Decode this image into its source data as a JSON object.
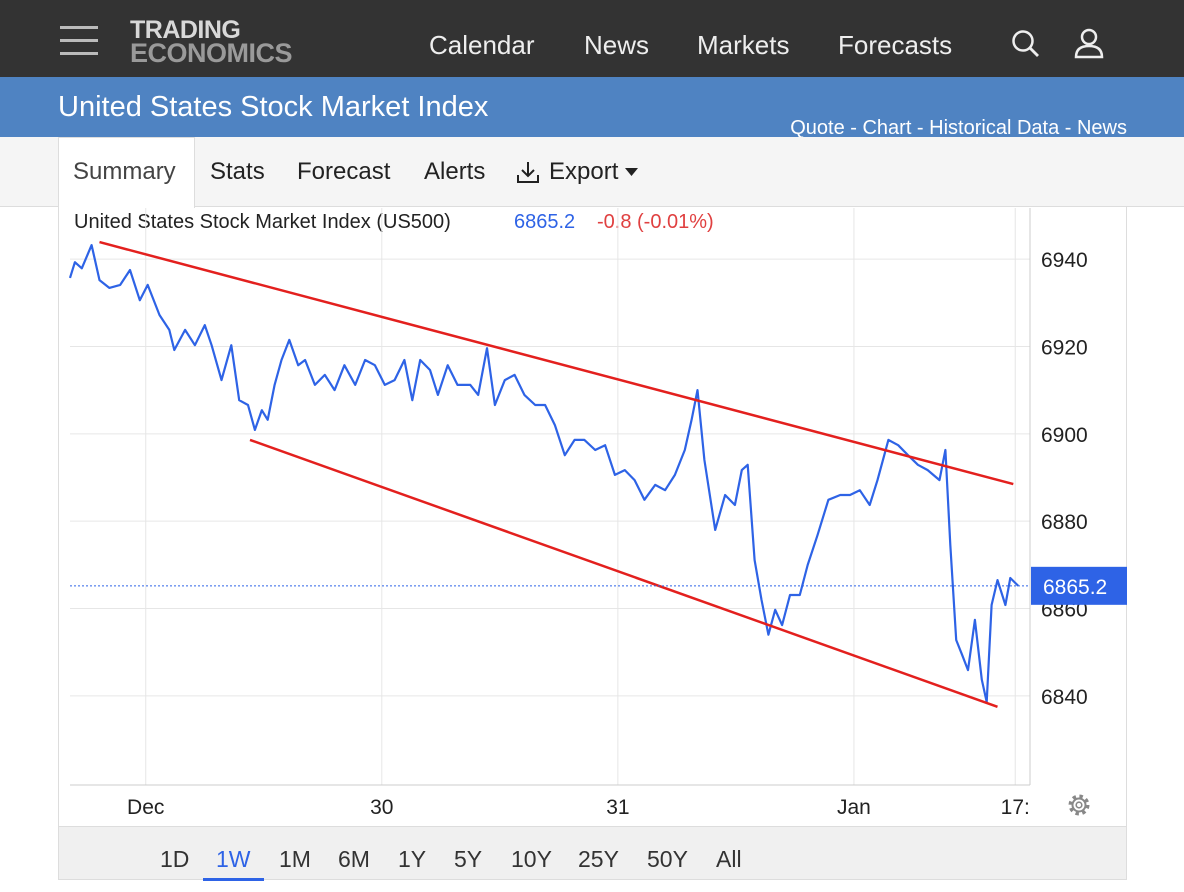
{
  "logo": [
    "TRADING",
    "ECONOMICS"
  ],
  "nav": [
    "Calendar",
    "News",
    "Markets",
    "Forecasts"
  ],
  "page_title": "United States Stock Market Index",
  "quick_links": [
    "Quote",
    "Chart",
    "Historical Data",
    "News"
  ],
  "link_separator": " - ",
  "tabs": [
    "Summary",
    "Stats",
    "Forecast",
    "Alerts",
    "Export"
  ],
  "ranges": [
    "1D",
    "1W",
    "1M",
    "6M",
    "1Y",
    "5Y",
    "10Y",
    "25Y",
    "50Y",
    "All"
  ],
  "active_range": 1,
  "chart_data": {
    "type": "line",
    "last_value": 6865.2,
    "change": "-0.8 (-0.01%)",
    "xlim": [
      -7.7,
      89.9
    ],
    "xticks": [
      {
        "value": 0,
        "label": "Dec"
      },
      {
        "value": 24,
        "label": "30"
      },
      {
        "value": 48,
        "label": "31"
      },
      {
        "value": 72,
        "label": "Jan"
      },
      {
        "value": 88.4,
        "label": "17:"
      }
    ],
    "ylim": [
      6819.6,
      6951.7
    ],
    "yticks": [
      6840,
      6860,
      6880,
      6900,
      6920,
      6940
    ],
    "grid": true,
    "series": [
      {
        "name": "United States Stock Market Index (US500)",
        "color": "#2e63e6",
        "x": [
          -7.7,
          -7.2,
          -6.5,
          -5.5,
          -4.7,
          -3.7,
          -2.6,
          -1.6,
          -0.6,
          0.2,
          1.4,
          2.4,
          2.9,
          4.0,
          5.0,
          6.0,
          6.7,
          7.7,
          8.7,
          9.5,
          10.4,
          11.1,
          11.8,
          12.4,
          13.1,
          13.8,
          14.6,
          15.5,
          16.2,
          17.2,
          18.2,
          19.2,
          20.2,
          21.3,
          22.3,
          23.3,
          24.3,
          25.3,
          26.3,
          27.1,
          27.9,
          28.9,
          29.7,
          30.7,
          31.7,
          33.0,
          33.8,
          34.7,
          35.5,
          36.5,
          37.5,
          38.5,
          39.6,
          40.6,
          41.6,
          42.6,
          43.6,
          44.6,
          45.7,
          46.7,
          47.7,
          48.7,
          49.7,
          50.7,
          51.8,
          52.8,
          53.8,
          54.8,
          55.5,
          56.1,
          56.8,
          57.9,
          58.9,
          59.9,
          60.6,
          61.2,
          61.9,
          62.6,
          63.3,
          64.0,
          64.7,
          65.5,
          66.5,
          67.3,
          68.3,
          69.4,
          70.6,
          71.6,
          72.6,
          73.6,
          74.4,
          75.5,
          76.5,
          77.5,
          78.5,
          79.5,
          80.7,
          81.3,
          81.8,
          82.4,
          83.0,
          83.6,
          84.3,
          85.0,
          85.5,
          86.0,
          86.6,
          87.4,
          87.9,
          88.7
        ],
        "values": [
          6935.7,
          6939.3,
          6937.9,
          6943.2,
          6935.2,
          6933.4,
          6934.1,
          6937.5,
          6930.6,
          6934.1,
          6927.2,
          6923.8,
          6919.2,
          6923.8,
          6920.3,
          6924.9,
          6920.3,
          6912.3,
          6920.3,
          6907.7,
          6906.6,
          6900.9,
          6905.4,
          6903.2,
          6911.2,
          6916.9,
          6921.5,
          6915.7,
          6916.9,
          6911.2,
          6913.5,
          6910.0,
          6915.7,
          6911.2,
          6916.9,
          6915.7,
          6911.2,
          6912.3,
          6916.9,
          6907.7,
          6916.9,
          6914.6,
          6908.9,
          6915.7,
          6911.2,
          6911.2,
          6908.9,
          6919.6,
          6906.6,
          6912.3,
          6913.5,
          6908.9,
          6906.6,
          6906.6,
          6902.0,
          6895.1,
          6898.6,
          6898.6,
          6896.3,
          6897.4,
          6890.6,
          6891.7,
          6889.4,
          6884.9,
          6888.3,
          6887.1,
          6890.6,
          6896.3,
          6903.2,
          6910.0,
          6894.0,
          6878.0,
          6886.0,
          6883.7,
          6891.7,
          6892.9,
          6871.1,
          6862.0,
          6854.0,
          6859.7,
          6856.2,
          6863.1,
          6863.1,
          6870.0,
          6876.8,
          6884.9,
          6886.0,
          6886.0,
          6887.1,
          6883.7,
          6889.4,
          6898.6,
          6897.4,
          6895.1,
          6892.9,
          6891.7,
          6889.4,
          6896.3,
          6874.6,
          6852.8,
          6849.4,
          6845.9,
          6857.4,
          6843.7,
          6838.6,
          6860.8,
          6866.5,
          6860.8,
          6867.0,
          6865.2
        ]
      }
    ],
    "trendlines": [
      {
        "color": "#e3201e",
        "x": [
          -4.7,
          88.2
        ],
        "values": [
          6943.9,
          6888.5
        ]
      },
      {
        "color": "#e3201e",
        "x": [
          10.6,
          86.6
        ],
        "values": [
          6898.6,
          6837.5
        ]
      }
    ]
  }
}
